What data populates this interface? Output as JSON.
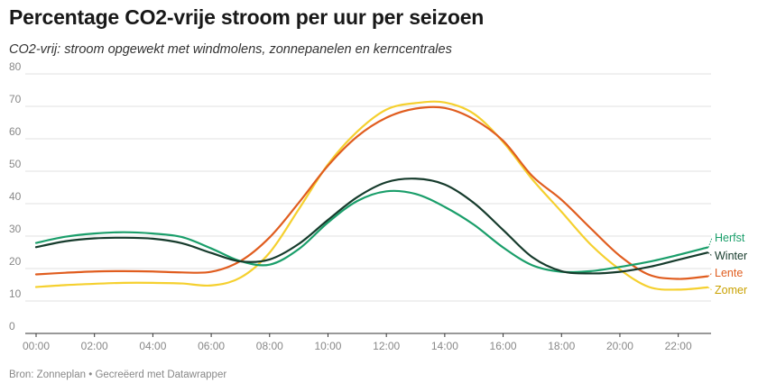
{
  "header": {
    "title": "Percentage CO2-vrije stroom per uur per seizoen",
    "subtitle": "CO2-vrij: stroom opgewekt met windmolens, zonnepanelen en kerncentrales"
  },
  "footer": {
    "source": "Bron: Zonneplan • Gecreëerd met Datawrapper"
  },
  "chart_data": {
    "type": "line",
    "title": "Percentage CO2-vrije stroom per uur per seizoen",
    "subtitle": "CO2-vrij: stroom opgewekt met windmolens, zonnepanelen en kerncentrales",
    "xlabel": "",
    "ylabel": "",
    "x": [
      0,
      1,
      2,
      3,
      4,
      5,
      6,
      7,
      8,
      9,
      10,
      11,
      12,
      13,
      14,
      15,
      16,
      17,
      18,
      19,
      20,
      21,
      22,
      23
    ],
    "xlim": [
      0,
      23
    ],
    "ylim": [
      0,
      80
    ],
    "yticks": [
      0,
      10,
      20,
      30,
      40,
      50,
      60,
      70,
      80
    ],
    "xtick_labels": [
      "00:00",
      "02:00",
      "04:00",
      "06:00",
      "08:00",
      "10:00",
      "12:00",
      "14:00",
      "16:00",
      "18:00",
      "20:00",
      "22:00"
    ],
    "xtick_values": [
      0,
      2,
      4,
      6,
      8,
      10,
      12,
      14,
      16,
      18,
      20,
      22
    ],
    "grid": true,
    "legend": "direct labels at line ends (right)",
    "series": [
      {
        "name": "Herfst",
        "color": "#1a9e6a",
        "label_color": "#1a9e6a",
        "values": [
          27.9,
          29.8,
          30.8,
          31.2,
          30.8,
          29.7,
          26.2,
          22.3,
          21.2,
          26.0,
          34.2,
          40.8,
          43.8,
          43.0,
          39.0,
          33.5,
          26.5,
          21.0,
          19.0,
          19.2,
          20.5,
          22.1,
          24.2,
          26.5
        ]
      },
      {
        "name": "Winter",
        "color": "#163b2c",
        "label_color": "#163b2c",
        "values": [
          26.6,
          28.4,
          29.3,
          29.5,
          29.2,
          27.8,
          24.8,
          22.2,
          22.8,
          27.6,
          35.0,
          42.0,
          46.6,
          47.7,
          45.9,
          40.2,
          31.9,
          23.5,
          19.2,
          18.5,
          19.0,
          20.5,
          22.7,
          24.9
        ]
      },
      {
        "name": "Lente",
        "color": "#e05d1f",
        "label_color": "#e05d1f",
        "values": [
          18.2,
          18.7,
          19.1,
          19.2,
          19.1,
          18.8,
          19.0,
          22.3,
          29.6,
          40.3,
          51.7,
          60.7,
          66.5,
          69.3,
          69.5,
          66.0,
          59.4,
          48.5,
          41.2,
          32.4,
          23.9,
          18.1,
          16.8,
          17.6
        ]
      },
      {
        "name": "Zomer",
        "color": "#f5d02f",
        "label_color": "#c9a100",
        "values": [
          14.3,
          14.9,
          15.3,
          15.6,
          15.6,
          15.4,
          14.8,
          17.2,
          24.9,
          38.3,
          52.1,
          62.2,
          69.0,
          71.0,
          71.2,
          67.7,
          59.0,
          47.5,
          37.5,
          27.4,
          19.7,
          14.3,
          13.5,
          14.2
        ]
      }
    ]
  }
}
